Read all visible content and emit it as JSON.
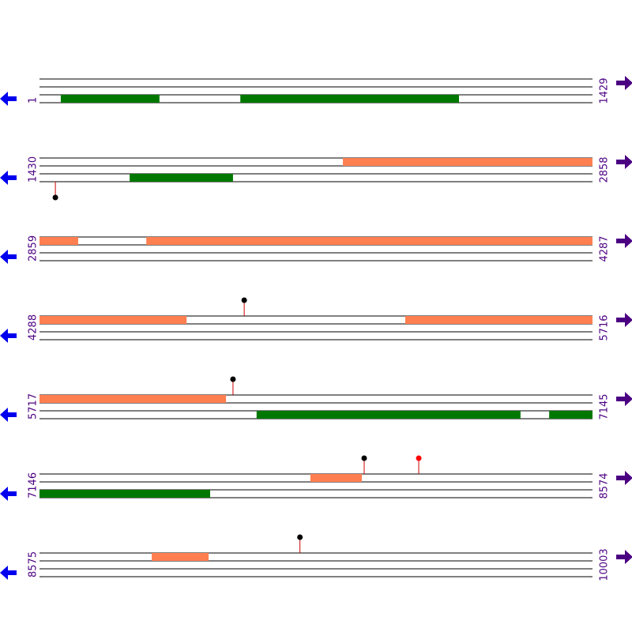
{
  "rows": [
    {
      "start": "1",
      "end": "1429",
      "from": 1,
      "to": 1429,
      "features": [
        {
          "track": 2,
          "kind": "green",
          "range": [
            56,
            311
          ]
        },
        {
          "track": 2,
          "kind": "green",
          "range": [
            520,
            1085
          ]
        }
      ],
      "sites": []
    },
    {
      "start": "1430",
      "end": "2858",
      "from": 1430,
      "to": 2858,
      "features": [
        {
          "track": 0,
          "kind": "orange",
          "range": [
            2214,
            2858
          ]
        },
        {
          "track": 2,
          "kind": "green",
          "range": [
            1663,
            1930
          ]
        }
      ],
      "sites": [
        {
          "pos": 1471,
          "side": "below",
          "color": "black"
        }
      ]
    },
    {
      "start": "2859",
      "end": "4287",
      "from": 2859,
      "to": 4287,
      "features": [
        {
          "track": 0,
          "kind": "orange",
          "range": [
            2859,
            2959
          ]
        },
        {
          "track": 0,
          "kind": "orange",
          "range": [
            3135,
            4287
          ]
        }
      ],
      "sites": []
    },
    {
      "start": "4288",
      "end": "5716",
      "from": 4288,
      "to": 5716,
      "features": [
        {
          "track": 0,
          "kind": "orange",
          "range": [
            4288,
            4668
          ]
        },
        {
          "track": 0,
          "kind": "orange",
          "range": [
            5233,
            5716
          ]
        }
      ],
      "sites": [
        {
          "pos": 4817,
          "side": "above",
          "color": "black"
        }
      ]
    },
    {
      "start": "5717",
      "end": "7145",
      "from": 5717,
      "to": 7145,
      "features": [
        {
          "track": 0,
          "kind": "orange",
          "range": [
            5717,
            6199
          ]
        },
        {
          "track": 2,
          "kind": "green",
          "range": [
            6278,
            6960
          ]
        },
        {
          "track": 2,
          "kind": "green",
          "range": [
            7034,
            7145
          ]
        }
      ],
      "sites": [
        {
          "pos": 6217,
          "side": "above",
          "color": "black"
        }
      ]
    },
    {
      "start": "7146",
      "end": "8574",
      "from": 7146,
      "to": 8574,
      "features": [
        {
          "track": 0,
          "kind": "orange",
          "range": [
            7846,
            7979
          ]
        },
        {
          "track": 2,
          "kind": "green",
          "range": [
            7146,
            7587
          ]
        }
      ],
      "sites": [
        {
          "pos": 7985,
          "side": "above",
          "color": "black"
        },
        {
          "pos": 8126,
          "side": "above",
          "color": "red"
        }
      ]
    },
    {
      "start": "8575",
      "end": "10003",
      "from": 8575,
      "to": 10003,
      "features": [
        {
          "track": 0,
          "kind": "orange",
          "range": [
            8865,
            9012
          ]
        }
      ],
      "sites": [
        {
          "pos": 9248,
          "side": "above",
          "color": "black"
        }
      ]
    }
  ]
}
